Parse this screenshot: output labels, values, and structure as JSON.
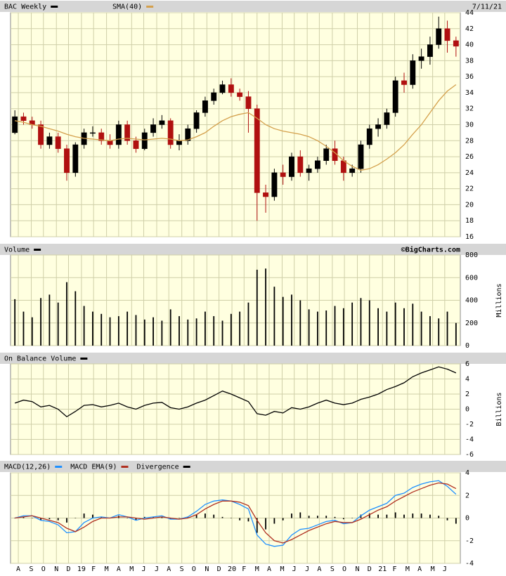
{
  "chart_data": [
    {
      "type": "candlestick",
      "date": "7/11/21",
      "series": [
        {
          "name": "BAC Weekly",
          "color": "#000000",
          "open": [
            29.0,
            31.0,
            30.5,
            30.0,
            27.5,
            28.5,
            27.0,
            24.0,
            27.5,
            29.0,
            29.0,
            28.0,
            27.5,
            30.0,
            28.0,
            27.0,
            29.0,
            30.0,
            30.5,
            27.5,
            28.0,
            29.5,
            31.5,
            33.0,
            34.0,
            35.0,
            34.0,
            33.5,
            32.0,
            21.5,
            21.0,
            24.0,
            23.5,
            26.0,
            24.0,
            24.5,
            25.5,
            27.0,
            25.5,
            24.0,
            24.5,
            27.5,
            29.5,
            30.0,
            31.5,
            35.5,
            35.0,
            38.0,
            38.5,
            40.0,
            42.0,
            40.5
          ],
          "high": [
            31.8,
            31.5,
            31.0,
            30.5,
            29.0,
            29.0,
            27.5,
            27.8,
            29.5,
            29.8,
            29.5,
            28.8,
            30.5,
            30.5,
            28.5,
            29.5,
            30.8,
            31.2,
            30.8,
            28.8,
            30.0,
            31.8,
            33.5,
            34.5,
            35.5,
            35.8,
            34.5,
            34.2,
            32.5,
            22.5,
            24.5,
            25.0,
            26.5,
            26.8,
            25.0,
            26.0,
            27.5,
            28.0,
            26.0,
            25.0,
            28.0,
            30.0,
            30.8,
            32.0,
            36.0,
            36.5,
            38.8,
            39.5,
            41.0,
            43.5,
            43.0,
            41.0
          ],
          "low": [
            28.8,
            30.0,
            29.5,
            27.0,
            27.0,
            26.5,
            23.0,
            23.5,
            27.0,
            28.5,
            27.5,
            27.0,
            27.0,
            27.5,
            26.5,
            26.8,
            28.5,
            29.5,
            27.0,
            26.8,
            27.5,
            29.0,
            31.0,
            32.5,
            33.8,
            33.5,
            33.0,
            29.0,
            18.0,
            19.0,
            20.5,
            22.5,
            23.0,
            23.5,
            23.0,
            24.0,
            25.0,
            25.0,
            23.0,
            23.5,
            24.0,
            27.0,
            28.5,
            29.5,
            31.0,
            34.0,
            34.5,
            37.0,
            37.5,
            39.5,
            39.0,
            38.5
          ],
          "close": [
            31.0,
            30.5,
            30.0,
            27.5,
            28.5,
            27.0,
            24.0,
            27.5,
            29.0,
            29.0,
            28.0,
            27.5,
            30.0,
            28.0,
            27.0,
            29.0,
            30.0,
            30.5,
            27.5,
            28.0,
            29.5,
            31.5,
            33.0,
            34.0,
            35.0,
            34.0,
            33.5,
            32.0,
            21.5,
            21.0,
            24.0,
            23.5,
            26.0,
            24.0,
            24.5,
            25.5,
            27.0,
            25.5,
            24.0,
            24.5,
            27.5,
            29.5,
            30.0,
            31.5,
            35.5,
            35.0,
            38.0,
            38.5,
            40.0,
            42.0,
            40.5,
            39.8
          ]
        },
        {
          "name": "SMA(40)",
          "color": "#d4a04c",
          "values": [
            30.5,
            30.3,
            30.0,
            29.8,
            29.5,
            29.2,
            28.8,
            28.5,
            28.3,
            28.2,
            28.1,
            28.0,
            28.2,
            28.3,
            28.2,
            28.1,
            28.2,
            28.3,
            28.2,
            28.0,
            28.1,
            28.5,
            29.0,
            29.8,
            30.5,
            31.0,
            31.3,
            31.5,
            30.8,
            30.0,
            29.5,
            29.2,
            29.0,
            28.8,
            28.5,
            28.0,
            27.3,
            26.5,
            25.5,
            24.8,
            24.3,
            24.5,
            25.0,
            25.7,
            26.5,
            27.5,
            28.8,
            30.0,
            31.5,
            33.0,
            34.2,
            35.0
          ]
        }
      ],
      "ylim": [
        16,
        44
      ],
      "yticks": [
        16,
        18,
        20,
        22,
        24,
        26,
        28,
        30,
        32,
        34,
        36,
        38,
        40,
        42,
        44
      ],
      "grid": true
    },
    {
      "type": "bar",
      "credit": "©BigCharts.com",
      "ylabel": "Millions",
      "series": [
        {
          "name": "Volume",
          "color": "#000000",
          "values": [
            410,
            300,
            250,
            420,
            450,
            380,
            560,
            480,
            350,
            300,
            280,
            250,
            260,
            300,
            270,
            230,
            250,
            220,
            320,
            260,
            230,
            240,
            300,
            260,
            220,
            280,
            300,
            380,
            670,
            680,
            520,
            430,
            450,
            400,
            320,
            300,
            310,
            350,
            330,
            380,
            420,
            400,
            330,
            300,
            380,
            330,
            370,
            300,
            260,
            240,
            300,
            200
          ]
        }
      ],
      "ylim": [
        0,
        800
      ],
      "yticks": [
        0,
        200,
        400,
        600,
        800
      ],
      "grid": true
    },
    {
      "type": "line",
      "ylabel": "Billions",
      "series": [
        {
          "name": "On Balance Volume",
          "color": "#000000",
          "values": [
            0.8,
            1.2,
            1.0,
            0.3,
            0.5,
            0.0,
            -1.0,
            -0.3,
            0.5,
            0.6,
            0.3,
            0.5,
            0.8,
            0.3,
            0.0,
            0.5,
            0.8,
            0.9,
            0.2,
            0.0,
            0.3,
            0.8,
            1.2,
            1.8,
            2.4,
            2.0,
            1.5,
            1.0,
            -0.6,
            -0.8,
            -0.3,
            -0.5,
            0.2,
            0.0,
            0.3,
            0.8,
            1.2,
            0.8,
            0.6,
            0.8,
            1.3,
            1.6,
            2.0,
            2.6,
            3.0,
            3.5,
            4.3,
            4.8,
            5.2,
            5.6,
            5.3,
            4.8
          ]
        }
      ],
      "ylim": [
        -6,
        6
      ],
      "yticks": [
        -6,
        -4,
        -2,
        0,
        2,
        4,
        6
      ],
      "grid": true
    },
    {
      "type": "combo",
      "series": [
        {
          "name": "MACD(12,26)",
          "color": "#1e90ff",
          "kind": "line",
          "values": [
            0.0,
            0.2,
            0.2,
            -0.2,
            -0.3,
            -0.6,
            -1.3,
            -1.2,
            -0.4,
            0.0,
            0.1,
            0.0,
            0.3,
            0.1,
            -0.2,
            0.0,
            0.1,
            0.2,
            -0.1,
            -0.1,
            0.1,
            0.6,
            1.2,
            1.5,
            1.6,
            1.5,
            1.2,
            0.8,
            -1.5,
            -2.3,
            -2.5,
            -2.4,
            -1.5,
            -1.0,
            -0.9,
            -0.6,
            -0.3,
            -0.2,
            -0.5,
            -0.4,
            0.2,
            0.7,
            1.0,
            1.3,
            2.0,
            2.2,
            2.7,
            3.0,
            3.2,
            3.3,
            2.8,
            2.1
          ]
        },
        {
          "name": "MACD EMA(9)",
          "color": "#b03020",
          "kind": "line",
          "values": [
            0.0,
            0.1,
            0.2,
            0.0,
            -0.2,
            -0.4,
            -0.9,
            -1.2,
            -0.8,
            -0.3,
            0.0,
            0.0,
            0.1,
            0.1,
            0.0,
            -0.1,
            0.0,
            0.1,
            0.0,
            -0.1,
            0.0,
            0.3,
            0.8,
            1.2,
            1.5,
            1.5,
            1.4,
            1.1,
            -0.2,
            -1.3,
            -2.0,
            -2.2,
            -1.9,
            -1.5,
            -1.1,
            -0.8,
            -0.5,
            -0.3,
            -0.4,
            -0.4,
            -0.1,
            0.3,
            0.7,
            1.0,
            1.5,
            1.9,
            2.3,
            2.6,
            2.9,
            3.1,
            3.0,
            2.6
          ]
        },
        {
          "name": "Divergence",
          "color": "#000000",
          "kind": "bar",
          "values": [
            0.0,
            0.1,
            0.0,
            -0.2,
            -0.1,
            -0.2,
            -0.4,
            0.0,
            0.4,
            0.3,
            0.1,
            0.0,
            0.2,
            0.0,
            -0.2,
            0.1,
            0.1,
            0.1,
            -0.1,
            0.0,
            0.1,
            0.3,
            0.4,
            0.3,
            0.1,
            0.0,
            -0.2,
            -0.3,
            -1.3,
            -1.0,
            -0.5,
            -0.2,
            0.4,
            0.5,
            0.2,
            0.2,
            0.2,
            0.1,
            -0.1,
            0.0,
            0.3,
            0.4,
            0.3,
            0.3,
            0.5,
            0.3,
            0.4,
            0.4,
            0.3,
            0.2,
            -0.2,
            -0.5
          ]
        }
      ],
      "ylim": [
        -4,
        4
      ],
      "yticks": [
        -4,
        -2,
        0,
        2,
        4
      ],
      "grid": true,
      "xticks": [
        {
          "value": 0.4,
          "label": "A"
        },
        {
          "value": 1.9,
          "label": "S"
        },
        {
          "value": 3.3,
          "label": "O"
        },
        {
          "value": 4.8,
          "label": "N"
        },
        {
          "value": 6.2,
          "label": "D"
        },
        {
          "value": 7.7,
          "label": "19"
        },
        {
          "value": 9.1,
          "label": "F"
        },
        {
          "value": 10.6,
          "label": "M"
        },
        {
          "value": 12.0,
          "label": "A"
        },
        {
          "value": 13.5,
          "label": "M"
        },
        {
          "value": 14.9,
          "label": "J"
        },
        {
          "value": 16.4,
          "label": "J"
        },
        {
          "value": 17.8,
          "label": "A"
        },
        {
          "value": 19.3,
          "label": "S"
        },
        {
          "value": 20.7,
          "label": "O"
        },
        {
          "value": 22.2,
          "label": "N"
        },
        {
          "value": 23.6,
          "label": "D"
        },
        {
          "value": 25.1,
          "label": "20"
        },
        {
          "value": 26.5,
          "label": "F"
        },
        {
          "value": 28.0,
          "label": "M"
        },
        {
          "value": 29.4,
          "label": "A"
        },
        {
          "value": 30.9,
          "label": "M"
        },
        {
          "value": 32.3,
          "label": "J"
        },
        {
          "value": 33.8,
          "label": "J"
        },
        {
          "value": 35.2,
          "label": "A"
        },
        {
          "value": 36.7,
          "label": "S"
        },
        {
          "value": 38.1,
          "label": "O"
        },
        {
          "value": 39.6,
          "label": "N"
        },
        {
          "value": 41.0,
          "label": "D"
        },
        {
          "value": 42.5,
          "label": "21"
        },
        {
          "value": 43.9,
          "label": "F"
        },
        {
          "value": 45.4,
          "label": "M"
        },
        {
          "value": 46.8,
          "label": "A"
        },
        {
          "value": 48.3,
          "label": "M"
        },
        {
          "value": 49.7,
          "label": "J"
        }
      ]
    }
  ]
}
